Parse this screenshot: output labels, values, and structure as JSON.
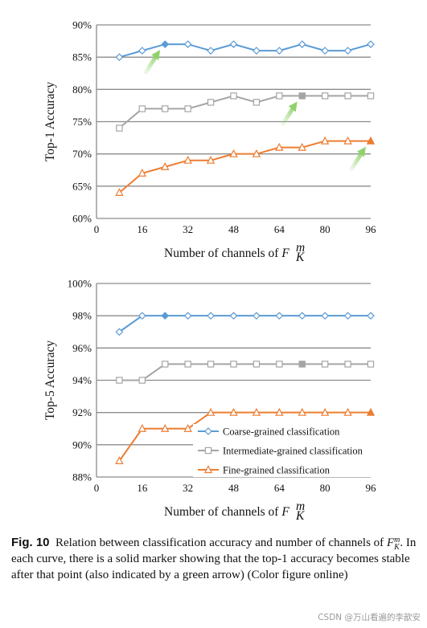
{
  "colors": {
    "coarse": "#5b9bd5",
    "intermediate": "#a5a5a5",
    "fine": "#ed7d31",
    "arrow": "#8fd16a",
    "grid": "#8c8c8c"
  },
  "chart_data": [
    {
      "type": "line",
      "ylabel": "Top-1 Accuracy",
      "xlabel": "Number of channels of",
      "xlabel_math": {
        "base": "F",
        "sup": "m",
        "sub": "K"
      },
      "xlim": [
        0,
        96
      ],
      "xticks": [
        "0",
        "16",
        "32",
        "48",
        "64",
        "80",
        "96"
      ],
      "ylim": [
        60,
        90
      ],
      "yticks": [
        "60%",
        "65%",
        "70%",
        "75%",
        "80%",
        "85%",
        "90%"
      ],
      "x": [
        8,
        16,
        24,
        32,
        40,
        48,
        56,
        64,
        72,
        80,
        88,
        96
      ],
      "grid": "horizontal",
      "series": [
        {
          "name": "Coarse-grained classification",
          "values": [
            85,
            86,
            87,
            87,
            86,
            87,
            86,
            86,
            87,
            86,
            86,
            87
          ],
          "stable_index": 2,
          "arrow_to_index": 2
        },
        {
          "name": "Intermediate-grained classification",
          "values": [
            74,
            77,
            77,
            77,
            78,
            79,
            78,
            79,
            79,
            79,
            79,
            79
          ],
          "stable_index": 8,
          "arrow_to_index": 8
        },
        {
          "name": "Fine-grained classification",
          "values": [
            64,
            67,
            68,
            69,
            69,
            70,
            70,
            71,
            71,
            72,
            72,
            72
          ],
          "stable_index": 11,
          "arrow_to_index": 11
        }
      ]
    },
    {
      "type": "line",
      "ylabel": "Top-5 Accuracy",
      "xlabel": "Number of channels of",
      "xlabel_math": {
        "base": "F",
        "sup": "m",
        "sub": "K"
      },
      "xlim": [
        0,
        96
      ],
      "xticks": [
        "0",
        "16",
        "32",
        "48",
        "64",
        "80",
        "96"
      ],
      "ylim": [
        88,
        100
      ],
      "yticks": [
        "88%",
        "90%",
        "92%",
        "94%",
        "96%",
        "98%",
        "100%"
      ],
      "x": [
        8,
        16,
        24,
        32,
        40,
        48,
        56,
        64,
        72,
        80,
        88,
        96
      ],
      "grid": "horizontal",
      "legend_position": "bottom-right",
      "series": [
        {
          "name": "Coarse-grained classification",
          "values": [
            97,
            98,
            98,
            98,
            98,
            98,
            98,
            98,
            98,
            98,
            98,
            98
          ],
          "stable_index": 2
        },
        {
          "name": "Intermediate-grained classification",
          "values": [
            94,
            94,
            95,
            95,
            95,
            95,
            95,
            95,
            95,
            95,
            95,
            95
          ],
          "stable_index": 8
        },
        {
          "name": "Fine-grained classification",
          "values": [
            89,
            91,
            91,
            91,
            92,
            92,
            92,
            92,
            92,
            92,
            92,
            92
          ],
          "stable_index": 11
        }
      ]
    }
  ],
  "caption": {
    "label": "Fig. 10",
    "math": {
      "base": "F",
      "sup": "m",
      "sub": "K"
    },
    "text_1": "Relation between classification accuracy and number of channels of",
    "text_2": ". In each curve, there is a solid marker showing that the top-1 accuracy becomes stable after that point (also indicated by a green arrow) (Color figure online)"
  },
  "watermark": "CSDN @万山看遍的李歆安"
}
